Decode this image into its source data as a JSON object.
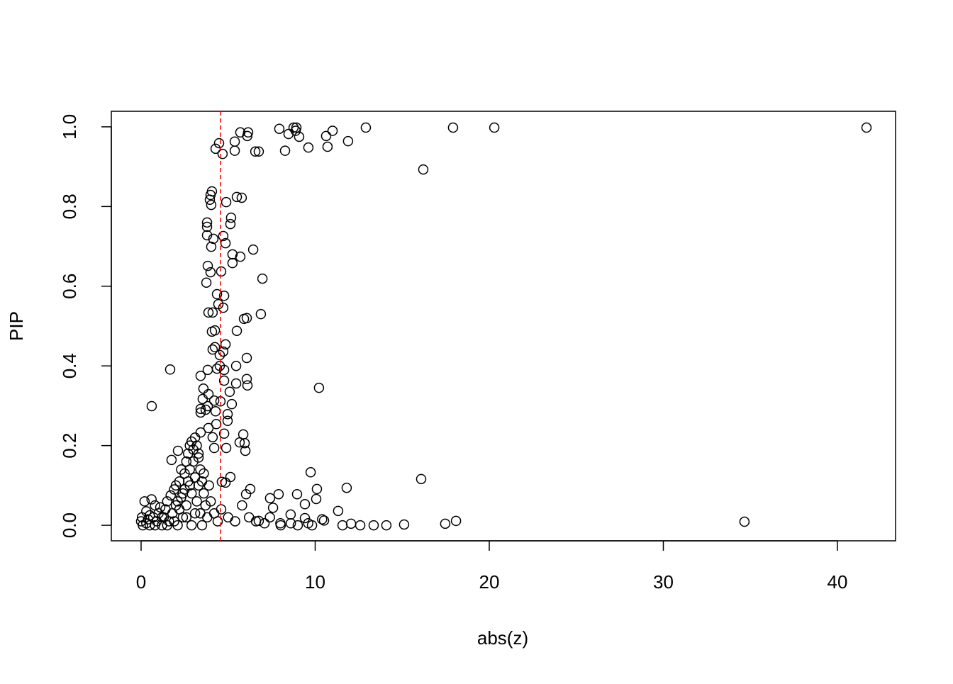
{
  "chart_data": {
    "type": "scatter",
    "x_label": "abs(z)",
    "y_label": "PIP",
    "xlim": [
      -1.71,
      43.34
    ],
    "ylim": [
      -0.039,
      1.039
    ],
    "xticks": [
      0,
      10,
      20,
      30,
      40
    ],
    "yticks": [
      {
        "value": 0,
        "label": "0.0"
      },
      0.2,
      0.4,
      0.6,
      0.8,
      {
        "value": 1,
        "label": "1.0"
      }
    ],
    "marker_color": "#000000",
    "vline": {
      "value": 4.56,
      "color": "#ff0000"
    },
    "x": [
      4.28,
      4.48,
      4.68,
      6.15,
      5.38,
      5.38,
      5.7,
      6.1,
      6.56,
      6.76,
      7.94,
      8.47,
      8.27,
      8.76,
      8.92,
      8.88,
      9.08,
      9.61,
      10.63,
      10.71,
      11.0,
      11.89,
      12.91,
      16.21,
      17.92,
      20.29,
      41.67,
      3.99,
      3.95,
      4.07,
      4.03,
      4.89,
      5.5,
      5.78,
      5.17,
      5.13,
      3.79,
      3.79,
      3.79,
      4.15,
      4.72,
      4.85,
      4.03,
      6.44,
      5.25,
      5.7,
      5.25,
      3.83,
      3.99,
      4.6,
      6.97,
      3.75,
      4.36,
      4.77,
      4.44,
      4.72,
      3.87,
      4.11,
      6.88,
      5.91,
      6.07,
      4.07,
      4.24,
      5.5,
      4.11,
      4.24,
      4.85,
      4.52,
      4.72,
      6.07,
      3.83,
      1.67,
      4.36,
      4.52,
      4.77,
      5.46,
      3.42,
      6.07,
      4.77,
      10.22,
      3.58,
      6.11,
      5.46,
      3.87,
      5.09,
      3.54,
      4.2,
      4.56,
      5.21,
      0.61,
      3.83,
      3.42,
      3.71,
      4.28,
      4.97,
      3.42,
      4.97,
      4.32,
      3.87,
      3.42,
      4.77,
      5.87,
      4.11,
      5.66,
      5.95,
      4.2,
      4.89,
      5.99,
      2.12,
      1.75,
      9.74,
      16.09,
      5.13,
      11.81,
      10.1,
      10.06,
      6.27,
      6.03,
      7.9,
      8.96,
      7.41,
      4.64,
      4.85,
      34.66,
      18.09,
      17.47,
      15.11,
      14.09,
      13.36,
      12.59,
      12.06,
      11.57,
      11.32,
      10.51,
      9.82,
      9.41,
      8.59,
      7.58,
      8.02,
      7.09,
      9.41,
      6.76,
      0,
      0.05,
      0.1,
      0.2,
      0.3,
      0.4,
      0.5,
      0.6,
      0.7,
      0.8,
      0.9,
      1.0,
      1.1,
      1.2,
      1.3,
      1.4,
      1.5,
      1.6,
      1.7,
      1.8,
      1.9,
      2.0,
      2.0,
      2.1,
      2.2,
      2.3,
      2.3,
      2.4,
      2.5,
      2.5,
      2.6,
      2.6,
      2.7,
      2.7,
      2.8,
      2.8,
      2.9,
      2.9,
      3.0,
      3.0,
      3.1,
      3.1,
      3.2,
      3.2,
      3.3,
      3.3,
      3.4,
      3.4,
      3.5,
      3.6,
      3.7,
      3.8,
      3.9,
      4.0,
      4.2,
      4.4,
      4.6,
      5.0,
      5.4,
      5.8,
      6.2,
      6.6,
      7.4,
      8.0,
      8.6,
      9.0,
      9.6,
      10.4,
      0.3,
      0.8,
      1.5,
      2.2,
      2.9,
      3.5,
      1.2,
      2.6,
      3.1,
      1.9,
      0.5,
      2.4,
      3.6,
      3.3,
      2.8,
      2.1
    ],
    "values": [
      0.945,
      0.959,
      0.932,
      0.986,
      0.94,
      0.963,
      0.986,
      0.977,
      0.938,
      0.938,
      0.995,
      0.982,
      0.94,
      0.998,
      0.998,
      0.99,
      0.975,
      0.948,
      0.977,
      0.95,
      0.99,
      0.964,
      0.998,
      0.893,
      0.998,
      0.998,
      0.998,
      0.829,
      0.817,
      0.838,
      0.804,
      0.811,
      0.824,
      0.822,
      0.772,
      0.756,
      0.76,
      0.749,
      0.728,
      0.719,
      0.726,
      0.708,
      0.699,
      0.692,
      0.68,
      0.674,
      0.658,
      0.651,
      0.635,
      0.637,
      0.619,
      0.609,
      0.58,
      0.576,
      0.555,
      0.546,
      0.534,
      0.534,
      0.53,
      0.518,
      0.52,
      0.486,
      0.489,
      0.488,
      0.441,
      0.447,
      0.454,
      0.427,
      0.436,
      0.42,
      0.39,
      0.391,
      0.393,
      0.4,
      0.39,
      0.4,
      0.375,
      0.367,
      0.363,
      0.345,
      0.343,
      0.351,
      0.356,
      0.329,
      0.335,
      0.317,
      0.313,
      0.311,
      0.304,
      0.299,
      0.299,
      0.292,
      0.29,
      0.286,
      0.279,
      0.283,
      0.262,
      0.254,
      0.244,
      0.233,
      0.23,
      0.228,
      0.221,
      0.208,
      0.206,
      0.194,
      0.194,
      0.187,
      0.187,
      0.164,
      0.133,
      0.116,
      0.121,
      0.094,
      0.091,
      0.066,
      0.091,
      0.078,
      0.078,
      0.078,
      0.068,
      0.109,
      0.107,
      0.009,
      0.011,
      0.004,
      0.002,
      0,
      0,
      0,
      0.004,
      0,
      0.036,
      0.012,
      0,
      0.018,
      0.027,
      0.044,
      0,
      0.005,
      0.053,
      0.011,
      0.01,
      0.02,
      0.0,
      0.06,
      0.005,
      0.015,
      0.0,
      0.065,
      0.02,
      0.05,
      0.01,
      0.03,
      0.045,
      0.0,
      0.02,
      0.04,
      0.06,
      0.01,
      0.075,
      0.03,
      0.09,
      0.05,
      0.1,
      0.0,
      0.11,
      0.07,
      0.14,
      0.02,
      0.13,
      0.09,
      0.16,
      0.05,
      0.18,
      0.11,
      0.2,
      0.14,
      0.21,
      0.08,
      0.19,
      0.16,
      0.22,
      0.12,
      0.2,
      0.06,
      0.17,
      0.1,
      0.14,
      0.03,
      0.11,
      0.08,
      0.05,
      0.02,
      0.1,
      0.06,
      0.03,
      0.01,
      0.04,
      0.02,
      0.01,
      0.05,
      0.02,
      0.01,
      0.02,
      0.005,
      0.005,
      0.0,
      0.005,
      0.015,
      0.035,
      0.0,
      0.0,
      0.04,
      0.0,
      0.0,
      0.02,
      0.02,
      0.03,
      0.01,
      0.025,
      0.08,
      0.13,
      0.18,
      0.1,
      0.06
    ]
  }
}
